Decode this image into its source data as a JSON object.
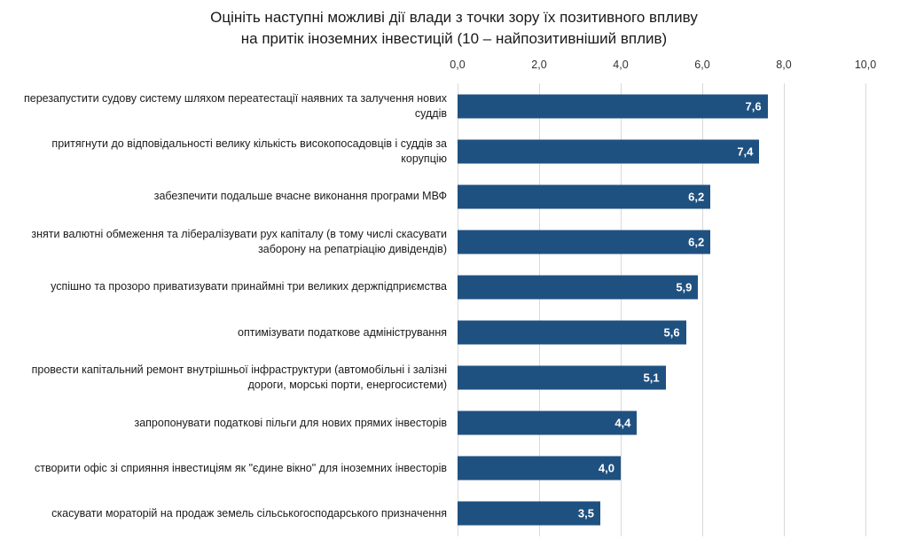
{
  "chart": {
    "title_lines": [
      "Оцініть наступні можливі дії влади з точки зору їх позитивного впливу",
      "на притік іноземних інвестицій (10 – найпозитивніший вплив)"
    ]
  },
  "chart_data": {
    "type": "bar",
    "orientation": "horizontal",
    "title": "Оцініть наступні можливі дії влади з точки зору їх позитивного впливу на притік іноземних інвестицій (10 – найпозитивніший вплив)",
    "categories": [
      "перезапустити судову систему шляхом переатестації наявних та залучення нових суддів",
      "притягнути до відповідальності велику кількість високопосадовців і суддів за корупцію",
      "забезпечити подальше вчасне виконання  програми МВФ",
      "зняти валютні обмеження та лібералізувати рух капіталу (в тому числі скасувати заборону на репатріацію дивідендів)",
      "успішно та прозоро приватизувати принаймні три великих держпідприємства",
      "оптимізувати податкове адміністрування",
      "провести капітальний ремонт внутрішньої інфраструктури (автомобільні і залізні дороги, морські порти, енергосистеми)",
      "запропонувати податкові пільги для нових прямих інвесторів",
      "створити офіс зі сприяння інвестиціям як \"єдине вікно\" для іноземних інвесторів",
      "скасувати мораторій на продаж земель сільськогосподарського призначення"
    ],
    "values": [
      7.6,
      7.4,
      6.2,
      6.2,
      5.9,
      5.6,
      5.1,
      4.4,
      4.0,
      3.5
    ],
    "value_labels": [
      "7,6",
      "7,4",
      "6,2",
      "6,2",
      "5,9",
      "5,6",
      "5,1",
      "4,4",
      "4,0",
      "3,5"
    ],
    "xlabel": "",
    "ylabel": "",
    "xlim": [
      0,
      10
    ],
    "x_ticks": [
      "0,0",
      "2,0",
      "4,0",
      "6,0",
      "8,0",
      "10,0"
    ],
    "grid": true,
    "legend": false,
    "bar_color": "#1f5180",
    "value_label_color": "#ffffff",
    "gridline_color": "#d9d9d9",
    "tick_label_color": "#333333",
    "title_color": "#1a1a1a"
  }
}
